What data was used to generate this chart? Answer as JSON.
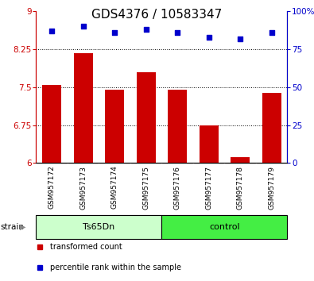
{
  "title": "GDS4376 / 10583347",
  "categories": [
    "GSM957172",
    "GSM957173",
    "GSM957174",
    "GSM957175",
    "GSM957176",
    "GSM957177",
    "GSM957178",
    "GSM957179"
  ],
  "bar_values": [
    7.55,
    8.17,
    7.45,
    7.8,
    7.45,
    6.75,
    6.12,
    7.38
  ],
  "percentile_values": [
    87,
    90,
    86,
    88,
    86,
    83,
    82,
    86
  ],
  "bar_color": "#cc0000",
  "dot_color": "#0000cc",
  "ylim_left": [
    6,
    9
  ],
  "ylim_right": [
    0,
    100
  ],
  "yticks_left": [
    6,
    6.75,
    7.5,
    8.25,
    9
  ],
  "yticks_right": [
    0,
    25,
    50,
    75,
    100
  ],
  "ytick_labels_left": [
    "6",
    "6.75",
    "7.5",
    "8.25",
    "9"
  ],
  "ytick_labels_right": [
    "0",
    "25",
    "50",
    "75",
    "100%"
  ],
  "hlines": [
    6.75,
    7.5,
    8.25
  ],
  "group1_label": "Ts65Dn",
  "group2_label": "control",
  "group_label_name": "strain",
  "group1_color": "#ccffcc",
  "group2_color": "#44ee44",
  "legend_items": [
    {
      "label": "transformed count",
      "color": "#cc0000"
    },
    {
      "label": "percentile rank within the sample",
      "color": "#0000cc"
    }
  ],
  "title_fontsize": 11,
  "axis_tick_fontsize": 7.5,
  "label_fontsize": 6.5,
  "bar_width": 0.6,
  "background_color": "#ffffff",
  "plot_bg": "#ffffff",
  "tick_area_bg": "#cccccc"
}
